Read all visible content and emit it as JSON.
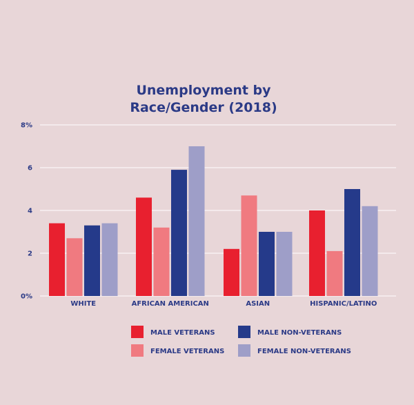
{
  "chart_data": {
    "type": "bar",
    "title_lines": [
      "Unemployment by",
      "Race/Gender (2018)"
    ],
    "categories": [
      "WHITE",
      "AFRICAN AMERICAN",
      "ASIAN",
      "HISPANIC/LATINO"
    ],
    "series": [
      {
        "name": "MALE VETERANS",
        "color": "#e8202f",
        "values": [
          3.4,
          4.6,
          2.2,
          4.0
        ]
      },
      {
        "name": "FEMALE VETERANS",
        "color": "#f07a80",
        "values": [
          2.7,
          3.2,
          4.7,
          2.1
        ]
      },
      {
        "name": "MALE NON-VETERANS",
        "color": "#253a8a",
        "values": [
          3.3,
          5.9,
          3.0,
          5.0
        ]
      },
      {
        "name": "FEMALE NON-VETERANS",
        "color": "#9e9ec8",
        "values": [
          3.4,
          7.0,
          3.0,
          4.2
        ]
      }
    ],
    "y_ticks": [
      {
        "value": 0,
        "label": "0%"
      },
      {
        "value": 2,
        "label": "2"
      },
      {
        "value": 4,
        "label": "4"
      },
      {
        "value": 6,
        "label": "6"
      },
      {
        "value": 8,
        "label": "8%"
      }
    ],
    "ylim": [
      0,
      8
    ],
    "grid": true,
    "legend_position": "bottom",
    "colors": {
      "background": "#e8d6d8",
      "text": "#2b3a86",
      "grid": "#ffffff"
    }
  }
}
